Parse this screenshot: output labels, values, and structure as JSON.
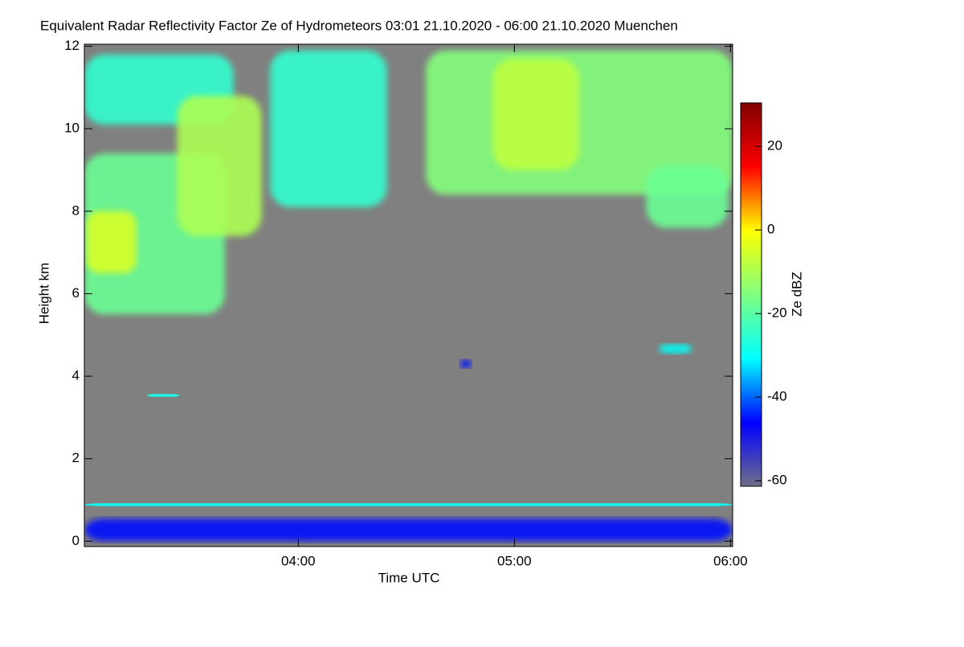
{
  "chart_data": {
    "type": "heatmap",
    "title": "Equivalent Radar Reflectivity Factor Ze of Hydrometeors   03:01 21.10.2020 - 06:00 21.10.2020 Muenchen",
    "x_label": "Time UTC",
    "y_label": "Height km",
    "colorbar_label": "Ze dBZ",
    "xlim": [
      3.01,
      6.01
    ],
    "xticks": [
      {
        "value": 4,
        "label": "04:00"
      },
      {
        "value": 5,
        "label": "05:00"
      },
      {
        "value": 6,
        "label": "06:00"
      }
    ],
    "ylim": [
      -0.13,
      12.05
    ],
    "yticks": [
      0,
      2,
      4,
      6,
      8,
      10,
      12
    ],
    "clim": [
      -61.3,
      30.4
    ],
    "cticks": [
      20,
      0,
      -20,
      -40,
      -60
    ],
    "background": "#808080",
    "colorscale": [
      "#6e6e8a",
      "#0000ff",
      "#00ffff",
      "#7fff7f",
      "#ffff00",
      "#ff0000",
      "#800000"
    ],
    "regions": [
      {
        "x": [
          3.01,
          3.7
        ],
        "y": [
          10.1,
          11.8
        ],
        "value": -25
      },
      {
        "x": [
          3.01,
          3.66
        ],
        "y": [
          5.5,
          9.4
        ],
        "value": -18
      },
      {
        "x": [
          3.02,
          3.25
        ],
        "y": [
          6.5,
          8.0
        ],
        "value": -5
      },
      {
        "x": [
          3.44,
          3.83
        ],
        "y": [
          7.4,
          10.8
        ],
        "value": -10
      },
      {
        "x": [
          3.87,
          4.41
        ],
        "y": [
          8.1,
          11.9
        ],
        "value": -25
      },
      {
        "x": [
          4.59,
          6.01
        ],
        "y": [
          8.4,
          11.9
        ],
        "value": -15
      },
      {
        "x": [
          4.9,
          5.3
        ],
        "y": [
          9.0,
          11.7
        ],
        "value": -8
      },
      {
        "x": [
          5.61,
          5.99
        ],
        "y": [
          7.6,
          9.1
        ],
        "value": -18
      },
      {
        "x": [
          5.67,
          5.82
        ],
        "y": [
          4.55,
          4.78
        ],
        "value": -30
      },
      {
        "x": [
          4.75,
          4.8
        ],
        "y": [
          4.2,
          4.4
        ],
        "value": -45
      },
      {
        "x": [
          3.3,
          3.45
        ],
        "y": [
          3.5,
          3.57
        ],
        "value": -28
      },
      {
        "x": [
          3.01,
          6.01
        ],
        "y": [
          0.85,
          0.92
        ],
        "value": -30
      },
      {
        "x": [
          3.01,
          6.01
        ],
        "y": [
          0.0,
          0.55
        ],
        "value": -45
      }
    ]
  }
}
